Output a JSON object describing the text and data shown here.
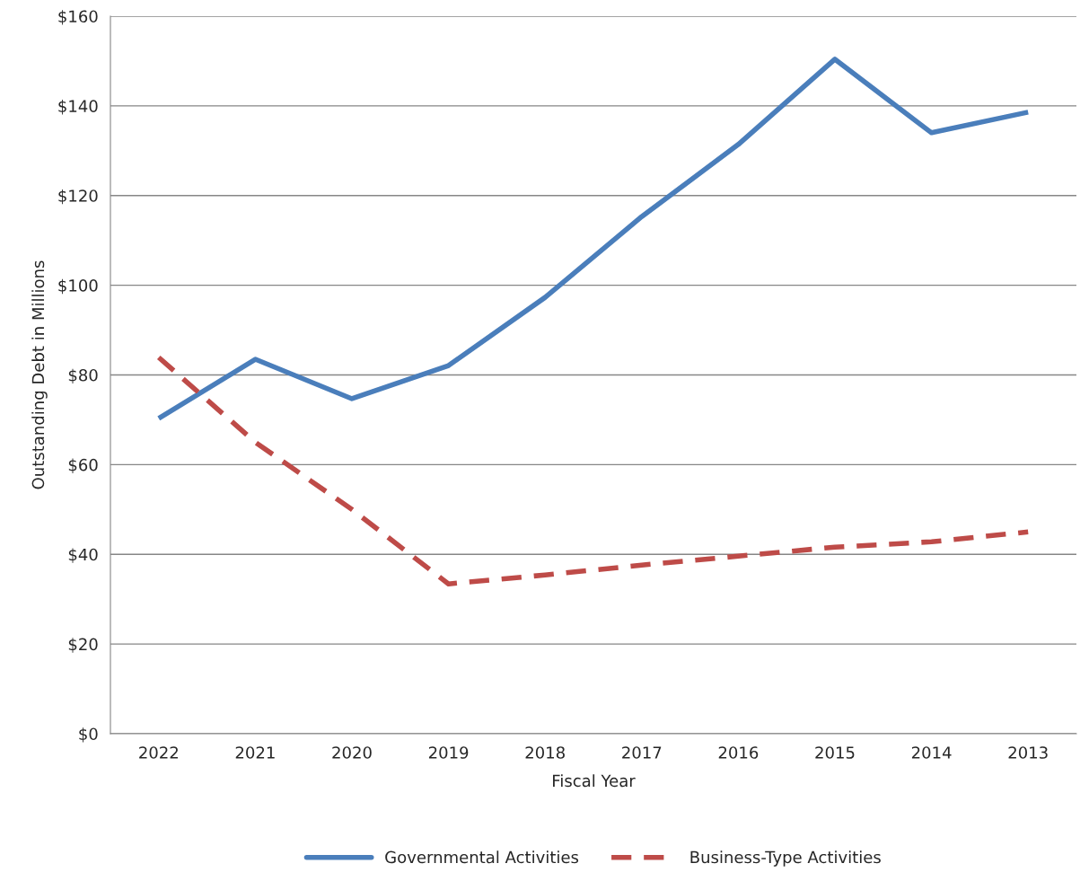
{
  "chart_data": {
    "type": "line",
    "xlabel": "Fiscal Year",
    "ylabel": "Outstanding Debt in Millions",
    "categories": [
      "2022",
      "2021",
      "2020",
      "2019",
      "2018",
      "2017",
      "2016",
      "2015",
      "2014",
      "2013"
    ],
    "series": [
      {
        "name": "Governmental Activities",
        "color": "#4a7ebb",
        "line_style": "solid",
        "values": [
          70.3,
          83.5,
          74.7,
          82.1,
          97.3,
          115.3,
          131.4,
          150.4,
          134.0,
          138.6
        ]
      },
      {
        "name": "Business-Type Activities",
        "color": "#be4b48",
        "line_style": "dashed",
        "values": [
          83.9,
          65.0,
          50.0,
          33.4,
          35.4,
          37.6,
          39.6,
          41.6,
          42.8,
          45.0
        ]
      }
    ],
    "ylim": [
      0,
      160
    ],
    "yticks": [
      {
        "value": 0,
        "label": "$0"
      },
      {
        "value": 20,
        "label": "$20"
      },
      {
        "value": 40,
        "label": "$40"
      },
      {
        "value": 60,
        "label": "$60"
      },
      {
        "value": 80,
        "label": "$80"
      },
      {
        "value": 100,
        "label": "$100"
      },
      {
        "value": 120,
        "label": "$120"
      },
      {
        "value": 140,
        "label": "$140"
      },
      {
        "value": 160,
        "label": "$160"
      }
    ],
    "grid": "y",
    "legend": "bottom",
    "marker": "none"
  }
}
